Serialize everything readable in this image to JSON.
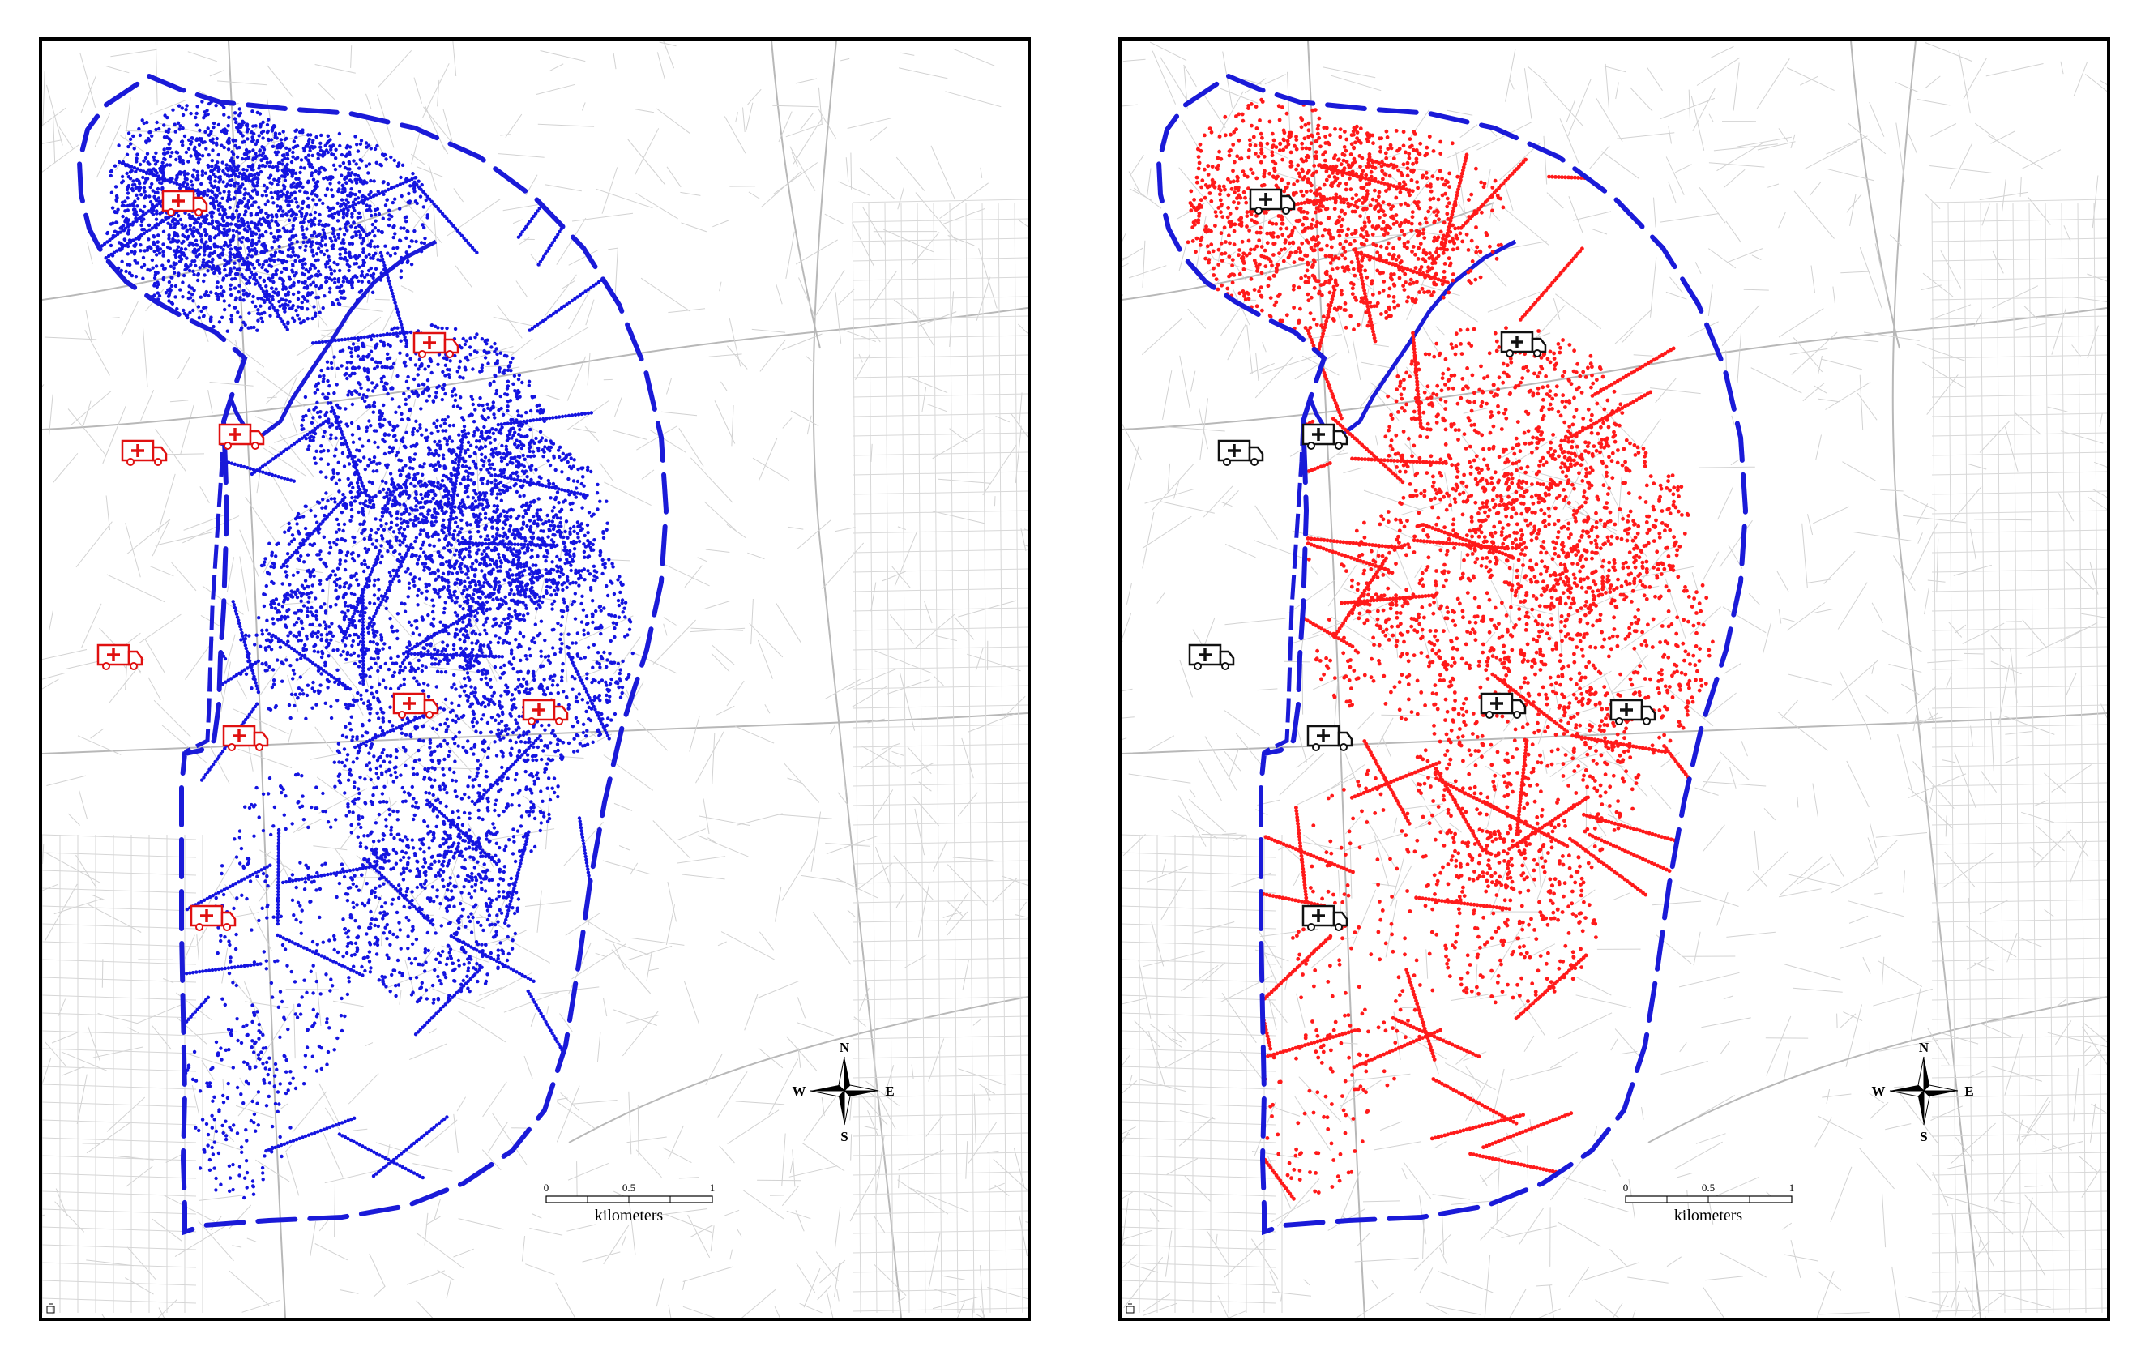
{
  "maps": [
    {
      "id": "left",
      "point_color": "#1414e0",
      "boundary_color": "#1a1ad8",
      "station_color": "#e01010",
      "station_icon": "ambulance-icon"
    },
    {
      "id": "right",
      "point_color": "#ff1a1a",
      "boundary_color": "#1a1ad8",
      "station_color": "#111111",
      "station_icon": "ambulance-icon"
    }
  ],
  "scale_bar": {
    "ticks": [
      "0",
      "0.5",
      "1"
    ],
    "unit": "kilometers"
  },
  "compass": {
    "north": "N",
    "south": "S",
    "east": "E",
    "west": "W",
    "icon": "north-arrow-icon"
  },
  "corner_icon": "fire-hydrant-icon"
}
